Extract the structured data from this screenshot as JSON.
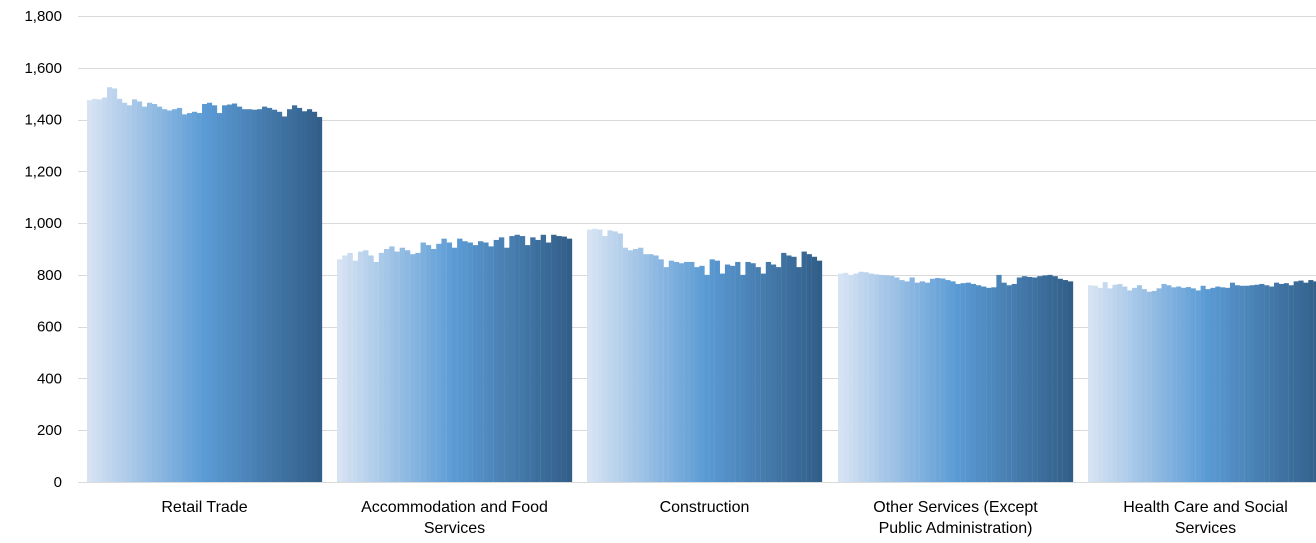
{
  "chart_data": {
    "type": "bar",
    "title": "",
    "xlabel": "",
    "ylabel": "",
    "ylim": [
      0,
      1800
    ],
    "yticks": [
      0,
      200,
      400,
      600,
      800,
      1000,
      1200,
      1400,
      1600,
      1800
    ],
    "ytick_labels": [
      "0",
      "200",
      "400",
      "600",
      "800",
      "1,000",
      "1,200",
      "1,400",
      "1,600",
      "1,800"
    ],
    "grid": true,
    "legend": "none",
    "colors": {
      "light": "#d6e3f3",
      "mid": "#5b9bd5",
      "dark": "#325f89",
      "grid": "#d9d9d9"
    },
    "categories": [
      {
        "label": [
          "Retail Trade"
        ],
        "values": [
          1475,
          1480,
          1478,
          1485,
          1525,
          1520,
          1480,
          1465,
          1455,
          1478,
          1470,
          1450,
          1465,
          1460,
          1450,
          1440,
          1435,
          1440,
          1445,
          1420,
          1425,
          1430,
          1425,
          1460,
          1465,
          1455,
          1425,
          1455,
          1458,
          1462,
          1450,
          1440,
          1440,
          1438,
          1440,
          1450,
          1445,
          1438,
          1430,
          1412,
          1440,
          1455,
          1445,
          1432,
          1440,
          1430,
          1410
        ]
      },
      {
        "label": [
          "Accommodation and Food",
          "Services"
        ],
        "values": [
          860,
          875,
          885,
          855,
          890,
          895,
          875,
          850,
          885,
          900,
          910,
          890,
          905,
          895,
          880,
          885,
          925,
          915,
          900,
          920,
          940,
          925,
          905,
          940,
          930,
          925,
          915,
          930,
          925,
          910,
          935,
          945,
          905,
          950,
          955,
          950,
          915,
          945,
          935,
          955,
          925,
          955,
          950,
          948,
          940
        ]
      },
      {
        "label": [
          "Construction"
        ],
        "values": [
          975,
          978,
          975,
          950,
          972,
          968,
          960,
          905,
          895,
          900,
          905,
          880,
          880,
          875,
          860,
          830,
          855,
          850,
          845,
          850,
          850,
          830,
          835,
          800,
          860,
          855,
          805,
          840,
          835,
          850,
          800,
          850,
          845,
          830,
          805,
          850,
          840,
          830,
          885,
          875,
          870,
          830,
          890,
          880,
          870,
          855
        ]
      },
      {
        "label": [
          "Other Services (Except",
          "Public Administration)"
        ],
        "values": [
          805,
          808,
          800,
          805,
          812,
          810,
          805,
          802,
          800,
          798,
          796,
          790,
          780,
          775,
          790,
          770,
          775,
          770,
          785,
          788,
          786,
          780,
          775,
          765,
          768,
          770,
          765,
          760,
          755,
          750,
          752,
          800,
          770,
          760,
          765,
          790,
          795,
          792,
          790,
          795,
          798,
          800,
          795,
          785,
          780,
          775
        ]
      },
      {
        "label": [
          "Health Care and Social",
          "Services"
        ],
        "values": [
          760,
          758,
          750,
          772,
          748,
          762,
          765,
          755,
          740,
          750,
          760,
          745,
          735,
          738,
          748,
          765,
          760,
          752,
          755,
          750,
          753,
          748,
          740,
          758,
          745,
          750,
          755,
          752,
          750,
          770,
          760,
          758,
          758,
          760,
          762,
          765,
          760,
          755,
          770,
          765,
          768,
          760,
          775,
          778,
          770,
          780,
          775,
          782
        ]
      }
    ]
  }
}
